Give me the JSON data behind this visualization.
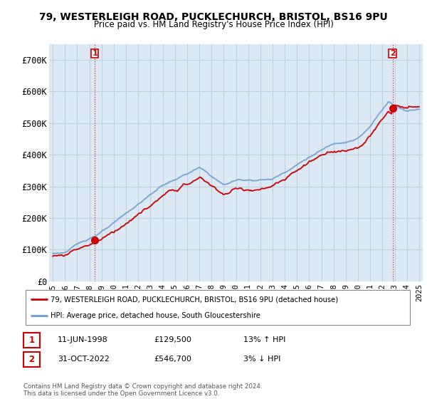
{
  "title_line1": "79, WESTERLEIGH ROAD, PUCKLECHURCH, BRISTOL, BS16 9PU",
  "title_line2": "Price paid vs. HM Land Registry's House Price Index (HPI)",
  "legend_line1": "79, WESTERLEIGH ROAD, PUCKLECHURCH, BRISTOL, BS16 9PU (detached house)",
  "legend_line2": "HPI: Average price, detached house, South Gloucestershire",
  "annotation1_date": "11-JUN-1998",
  "annotation1_price": "£129,500",
  "annotation1_hpi": "13% ↑ HPI",
  "annotation2_date": "31-OCT-2022",
  "annotation2_price": "£546,700",
  "annotation2_hpi": "3% ↓ HPI",
  "footer": "Contains HM Land Registry data © Crown copyright and database right 2024.\nThis data is licensed under the Open Government Licence v3.0.",
  "plot_bg": "#dce9f5",
  "fig_bg": "#ffffff",
  "grid_color": "#b8cfe0",
  "hpi_color": "#6699cc",
  "price_color": "#cc0000",
  "ylim": [
    0,
    750000
  ],
  "yticks": [
    0,
    100000,
    200000,
    300000,
    400000,
    500000,
    600000,
    700000
  ],
  "ytick_labels": [
    "£0",
    "£100K",
    "£200K",
    "£300K",
    "£400K",
    "£500K",
    "£600K",
    "£700K"
  ],
  "sale1_x": 1998.44,
  "sale1_y": 129500,
  "sale2_x": 2022.83,
  "sale2_y": 546700,
  "xlim_left": 1994.7,
  "xlim_right": 2025.3
}
